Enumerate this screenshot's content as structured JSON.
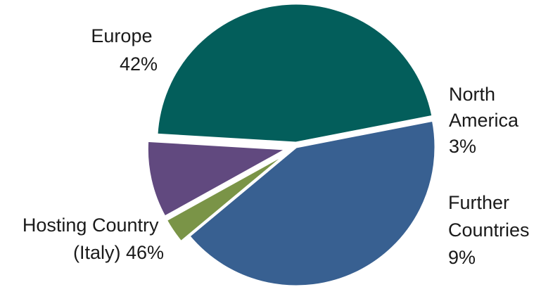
{
  "chart_data": {
    "type": "pie",
    "title": "",
    "colors": {
      "Europe": "#386091",
      "North America": "#7a9447",
      "Further Countries": "#61497f",
      "Hosting Country (Italy)": "#035e5b"
    },
    "slices": [
      {
        "name": "Europe",
        "value": 42,
        "label_lines": [
          "Europe",
          "42%"
        ]
      },
      {
        "name": "North America",
        "value": 3,
        "label_lines": [
          "North",
          "America",
          "3%"
        ]
      },
      {
        "name": "Further Countries",
        "value": 9,
        "label_lines": [
          "Further",
          "Countries",
          "9%"
        ]
      },
      {
        "name": "Hosting Country (Italy)",
        "value": 46,
        "label_lines": [
          "Hosting Country",
          "(Italy) 46%"
        ]
      }
    ]
  }
}
